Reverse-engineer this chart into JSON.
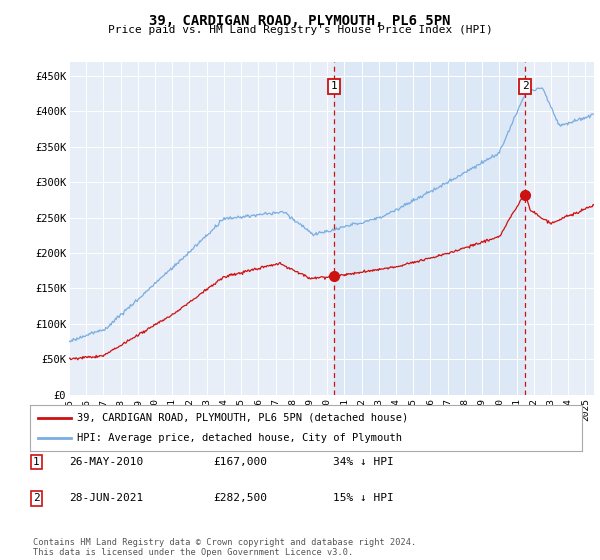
{
  "title": "39, CARDIGAN ROAD, PLYMOUTH, PL6 5PN",
  "subtitle": "Price paid vs. HM Land Registry's House Price Index (HPI)",
  "ylabel_ticks": [
    "£0",
    "£50K",
    "£100K",
    "£150K",
    "£200K",
    "£250K",
    "£300K",
    "£350K",
    "£400K",
    "£450K"
  ],
  "ylabel_values": [
    0,
    50000,
    100000,
    150000,
    200000,
    250000,
    300000,
    350000,
    400000,
    450000
  ],
  "ylim": [
    0,
    470000
  ],
  "xlim_start": 1995.0,
  "xlim_end": 2025.5,
  "hpi_color": "#7aade0",
  "price_color": "#cc1111",
  "marker1_date": 2010.4,
  "marker1_price": 167000,
  "marker2_date": 2021.5,
  "marker2_price": 282500,
  "legend_line1": "39, CARDIGAN ROAD, PLYMOUTH, PL6 5PN (detached house)",
  "legend_line2": "HPI: Average price, detached house, City of Plymouth",
  "annotation1_date": "26-MAY-2010",
  "annotation1_price": "£167,000",
  "annotation1_hpi": "34% ↓ HPI",
  "annotation2_date": "28-JUN-2021",
  "annotation2_price": "£282,500",
  "annotation2_hpi": "15% ↓ HPI",
  "footnote": "Contains HM Land Registry data © Crown copyright and database right 2024.\nThis data is licensed under the Open Government Licence v3.0.",
  "fig_bg": "#ffffff",
  "plot_bg": "#e8eef8",
  "between_marker_bg": "#dce8f5"
}
